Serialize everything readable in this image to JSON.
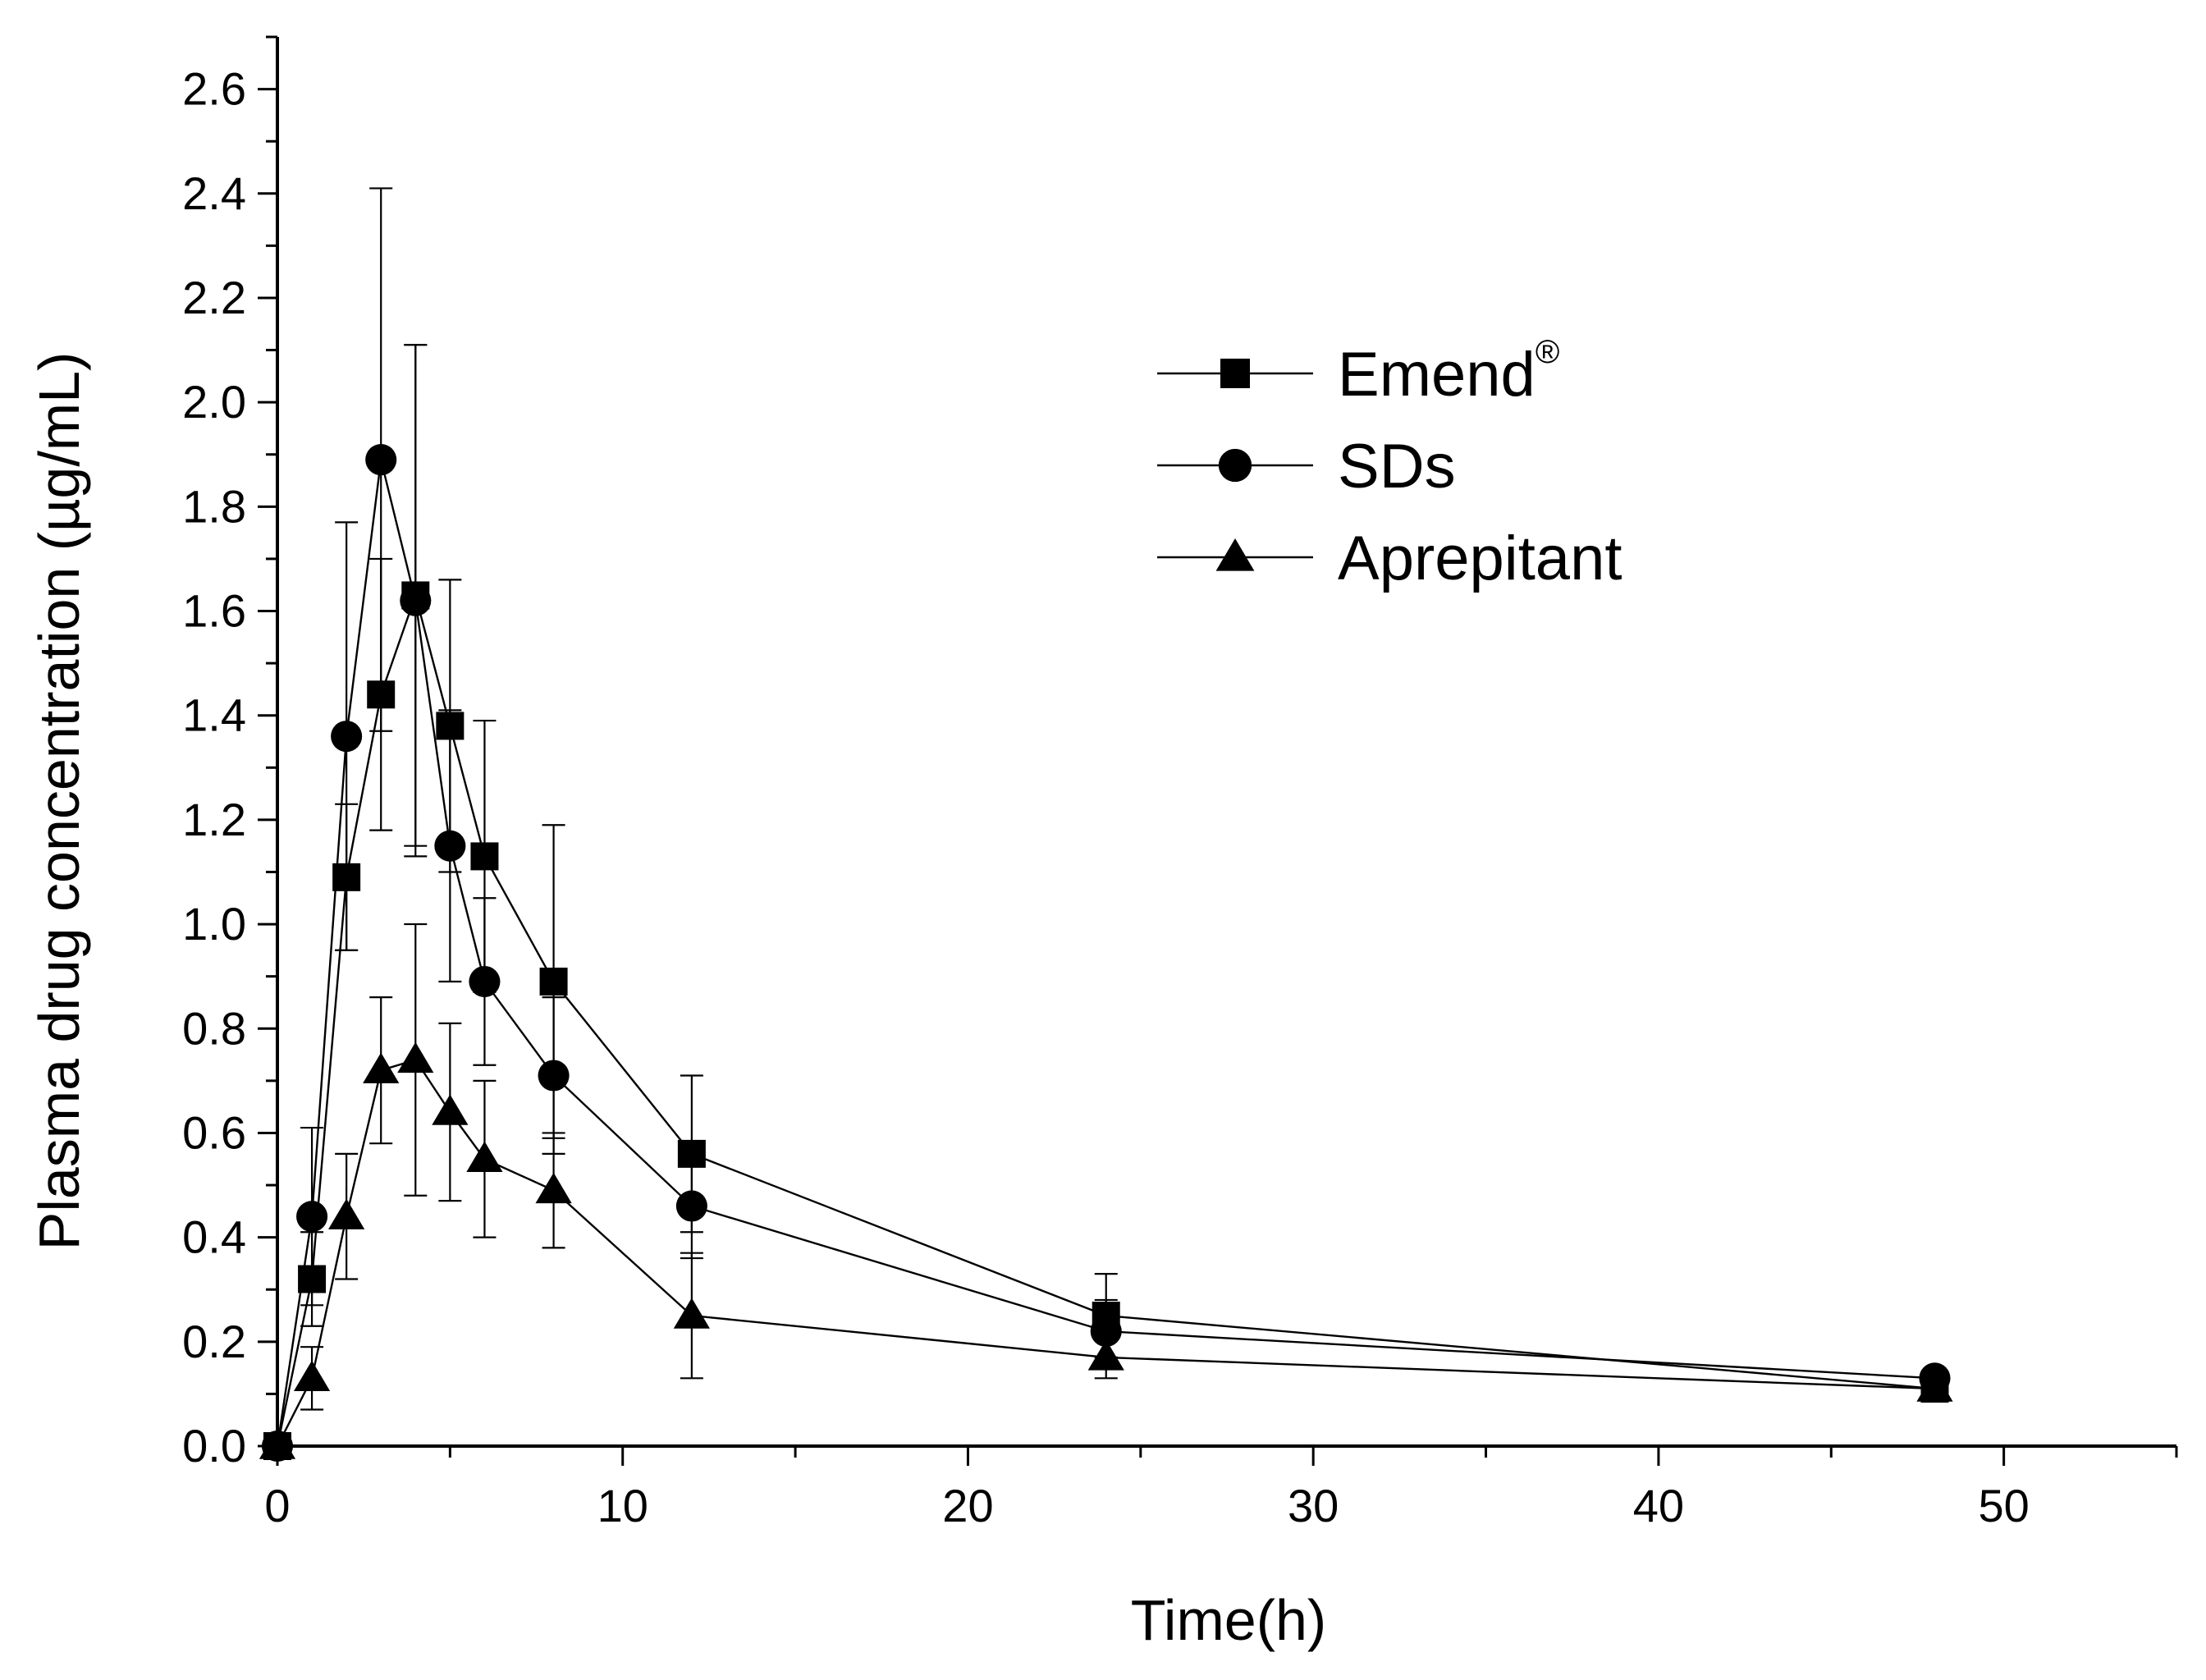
{
  "chart_data": {
    "type": "line",
    "title": "",
    "xlabel": "Time(h)",
    "ylabel": "Plasma drug concentration (µg/mL)",
    "xlim": [
      0,
      55
    ],
    "ylim": [
      0,
      2.7
    ],
    "xticks": [
      0,
      10,
      20,
      30,
      40,
      50
    ],
    "xtick_labels": [
      "0",
      "10",
      "20",
      "30",
      "40",
      "50"
    ],
    "xminor_step": 5,
    "yticks": [
      0.0,
      0.2,
      0.4,
      0.6,
      0.8,
      1.0,
      1.2,
      1.4,
      1.6,
      1.8,
      2.0,
      2.2,
      2.4,
      2.6
    ],
    "ytick_labels": [
      "0.0",
      "0.2",
      "0.4",
      "0.6",
      "0.8",
      "1.0",
      "1.2",
      "1.4",
      "1.6",
      "1.8",
      "2.0",
      "2.2",
      "2.4",
      "2.6"
    ],
    "yminor_step": 0.1,
    "grid": false,
    "legend_position": "top-right",
    "x": [
      0,
      1,
      2,
      3,
      4,
      5,
      6,
      8,
      12,
      24,
      48
    ],
    "series": [
      {
        "name": "Emend",
        "name_suffix": "®",
        "marker": "square",
        "values": [
          0.0,
          0.32,
          1.09,
          1.44,
          1.63,
          1.38,
          1.13,
          0.89,
          0.56,
          0.25,
          0.11
        ],
        "errors": [
          0.0,
          0.09,
          0.14,
          0.26,
          0.48,
          0.28,
          0.26,
          0.3,
          0.15,
          0.08,
          0.02
        ]
      },
      {
        "name": "SDs",
        "name_suffix": "",
        "marker": "circle",
        "values": [
          0.0,
          0.44,
          1.36,
          1.89,
          1.62,
          1.15,
          0.89,
          0.71,
          0.46,
          0.22,
          0.13
        ],
        "errors": [
          0.0,
          0.17,
          0.41,
          0.52,
          0.49,
          0.26,
          0.16,
          0.15,
          0.1,
          0.06,
          0.01
        ]
      },
      {
        "name": "Aprepitant",
        "name_suffix": "",
        "marker": "triangle",
        "values": [
          0.0,
          0.13,
          0.44,
          0.72,
          0.74,
          0.64,
          0.55,
          0.49,
          0.25,
          0.17,
          0.11
        ],
        "errors": [
          0.0,
          0.06,
          0.12,
          0.14,
          0.26,
          0.17,
          0.15,
          0.11,
          0.12,
          0.04,
          0.01
        ]
      }
    ]
  }
}
